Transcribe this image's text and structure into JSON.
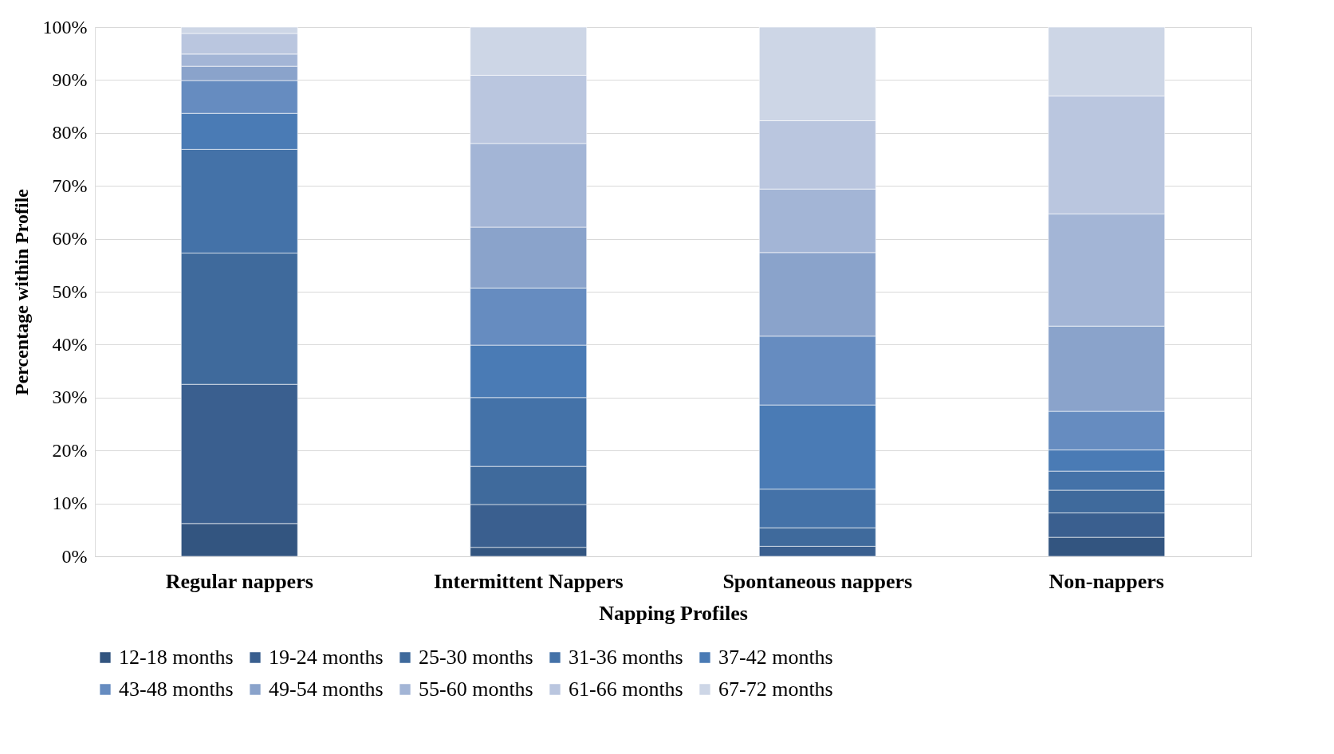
{
  "chart_data": {
    "type": "bar",
    "stacked": true,
    "xlabel": "Napping Profiles",
    "ylabel": "Percentage within Profile",
    "categories": [
      "Regular nappers",
      "Intermittent Nappers",
      "Spontaneous nappers",
      "Non-nappers"
    ],
    "series": [
      {
        "name": "12-18 months",
        "color": "#335580",
        "values": [
          6.2,
          1.7,
          0,
          3.6
        ]
      },
      {
        "name": "19-24 months",
        "color": "#3a5f8f",
        "values": [
          26.3,
          8.1,
          1.9,
          4.6
        ]
      },
      {
        "name": "25-30 months",
        "color": "#3f6a9c",
        "values": [
          24.8,
          7.2,
          3.5,
          4.3
        ]
      },
      {
        "name": "31-36 months",
        "color": "#4472a8",
        "values": [
          19.6,
          13.0,
          7.3,
          3.6
        ]
      },
      {
        "name": "37-42 months",
        "color": "#4a7bb5",
        "values": [
          6.8,
          9.9,
          15.9,
          4.0
        ]
      },
      {
        "name": "43-48 months",
        "color": "#668cc0",
        "values": [
          6.2,
          10.8,
          13.0,
          7.3
        ]
      },
      {
        "name": "49-54 months",
        "color": "#8aa3cb",
        "values": [
          2.7,
          11.5,
          15.8,
          16.1
        ]
      },
      {
        "name": "55-60 months",
        "color": "#a3b5d6",
        "values": [
          2.3,
          15.8,
          12.0,
          21.2
        ]
      },
      {
        "name": "61-66 months",
        "color": "#bac6df",
        "values": [
          3.9,
          12.9,
          12.9,
          22.3
        ]
      },
      {
        "name": "67-72 months",
        "color": "#cdd6e6",
        "values": [
          1.2,
          9.1,
          17.7,
          13.0
        ]
      }
    ],
    "ylim": [
      0,
      100
    ],
    "yticks": [
      {
        "value": 0,
        "label": "0%"
      },
      {
        "value": 10,
        "label": "10%"
      },
      {
        "value": 20,
        "label": "20%"
      },
      {
        "value": 30,
        "label": "30%"
      },
      {
        "value": 40,
        "label": "40%"
      },
      {
        "value": 50,
        "label": "50%"
      },
      {
        "value": 60,
        "label": "60%"
      },
      {
        "value": 70,
        "label": "70%"
      },
      {
        "value": 80,
        "label": "80%"
      },
      {
        "value": 90,
        "label": "90%"
      },
      {
        "value": 100,
        "label": "100%"
      }
    ],
    "grid": "y",
    "legend": "bottom"
  }
}
